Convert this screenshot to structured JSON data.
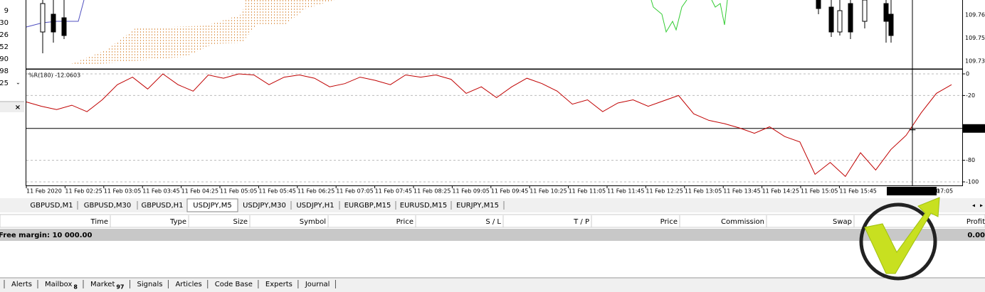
{
  "left_panel": {
    "values": [
      "9",
      "30",
      "26",
      "52",
      "90",
      "98",
      "25"
    ],
    "colors": [
      "#c00000",
      "#c00000",
      "#1030c0",
      "#c00000",
      "#1030c0",
      "#1030c0",
      "#1030c0"
    ]
  },
  "price_axis": [
    "109.765",
    "109.750",
    "109.735"
  ],
  "indicator": {
    "label": "%R(180) -12.0603",
    "color": "#c00000",
    "ylim": [
      0,
      -100
    ],
    "yticks": [
      0,
      -20,
      -80,
      -100
    ],
    "crosshair_value": -50.526,
    "values": [
      -26,
      -30,
      -33,
      -29,
      -35,
      -24,
      -10,
      -3,
      -14,
      0,
      -10,
      -16,
      -1,
      -4,
      0,
      -1,
      -10,
      -3,
      -1,
      -4,
      -12,
      -9,
      -3,
      -6,
      -10,
      -1,
      -3,
      -1,
      -5,
      -18,
      -12,
      -22,
      -12,
      -4,
      -9,
      -16,
      -28,
      -24,
      -35,
      -27,
      -24,
      -30,
      -25,
      -20,
      -37,
      -43,
      -46,
      -50,
      -55,
      -49,
      -58,
      -63,
      -93,
      -82,
      -95,
      -73,
      -89,
      -70,
      -57,
      -36,
      -18,
      -10
    ]
  },
  "time_axis": [
    "11 Feb 2020",
    "11 Feb 02:25",
    "11 Feb 03:05",
    "11 Feb 03:45",
    "11 Feb 04:25",
    "11 Feb 05:05",
    "11 Feb 05:45",
    "11 Feb 06:25",
    "11 Feb 07:05",
    "11 Feb 07:45",
    "11 Feb 08:25",
    "11 Feb 09:05",
    "11 Feb 09:45",
    "11 Feb 10:25",
    "11 Feb 11:05",
    "11 Feb 11:45",
    "11 Feb 12:25",
    "11 Feb 13:05",
    "11 Feb 13:45",
    "11 Feb 14:25",
    "11 Feb 15:05",
    "11 Feb 15:45"
  ],
  "crosshair_time": "2020.02.11 17:00",
  "time_axis_last": "17:05",
  "chart_tabs": [
    "GBPUSD,M1",
    "GBPUSD,M30",
    "GBPUSD,H1",
    "USDJPY,M5",
    "USDJPY,M30",
    "USDJPY,H1",
    "EURGBP,M15",
    "EURUSD,M15",
    "EURJPY,M15"
  ],
  "terminal": {
    "columns": [
      "Time",
      "Type",
      "Size",
      "Symbol",
      "Price",
      "S / L",
      "T / P",
      "Price",
      "Commission",
      "Swap",
      "Profit"
    ],
    "row": {
      "label": "Free margin: 10 000.00",
      "profit": "0.00"
    }
  },
  "bottom_tabs": [
    {
      "label": "Alerts"
    },
    {
      "label": "Mailbox",
      "badge": "8"
    },
    {
      "label": "Market",
      "badge": "97"
    },
    {
      "label": "Signals"
    },
    {
      "label": "Articles"
    },
    {
      "label": "Code Base"
    },
    {
      "label": "Experts"
    },
    {
      "label": "Journal"
    }
  ]
}
